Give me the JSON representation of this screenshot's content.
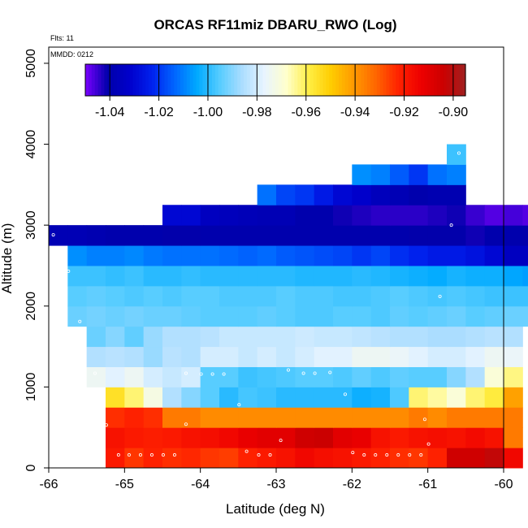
{
  "chart_data": {
    "type": "heatmap",
    "title": "ORCAS RF11miz DBARU_RWO (Log)",
    "notes": {
      "flights": "Flts: 11",
      "date": "MMDD: 0212"
    },
    "xlabel": "Latitude (deg N)",
    "ylabel": "Altitude (m)",
    "xlim": [
      -66,
      -60
    ],
    "ylim": [
      0,
      5200
    ],
    "x_ticks": [
      -66,
      -65,
      -64,
      -63,
      -62,
      -61,
      -60
    ],
    "x_tick_labels": [
      "-66",
      "-65",
      "-64",
      "-63",
      "-62",
      "-61",
      "-60"
    ],
    "y_ticks": [
      0,
      1000,
      2000,
      3000,
      4000,
      5000
    ],
    "y_tick_labels": [
      "0",
      "1000",
      "2000",
      "3000",
      "4000",
      "5000"
    ],
    "colorbar": {
      "range": [
        -1.05,
        -0.895
      ],
      "ticks": [
        -1.04,
        -1.02,
        -1.0,
        -0.98,
        -0.96,
        -0.94,
        -0.92,
        -0.9
      ],
      "tick_labels": [
        "-1.04",
        "-1.02",
        "-1.00",
        "-0.98",
        "-0.96",
        "-0.94",
        "-0.92",
        "-0.90"
      ],
      "colors": [
        "#7b00ff",
        "#0000aa",
        "#0000cc",
        "#0022ee",
        "#0066ff",
        "#00aaff",
        "#55ccff",
        "#aaddff",
        "#e8f4ff",
        "#ffffcc",
        "#ffee44",
        "#ffcc00",
        "#ff9900",
        "#ff6600",
        "#ff2200",
        "#ee0000",
        "#cc0000",
        "#a02020"
      ]
    },
    "grid": {
      "lat_start": -66,
      "lat_step": 0.25,
      "alt_step": 250
    },
    "rows": [
      {
        "alt": 0,
        "start": -65.25,
        "values": [
          -0.92,
          -0.925,
          -0.922,
          -0.924,
          -0.923,
          -0.925,
          -0.926,
          -0.922,
          -0.92,
          -0.918,
          -0.915,
          -0.917,
          -0.918,
          -0.92,
          -0.922,
          -0.924,
          -0.925,
          -0.922,
          -0.905,
          -0.905,
          -0.902,
          -0.915
        ]
      },
      {
        "alt": 250,
        "start": -65.25,
        "values": [
          -0.918,
          -0.92,
          -0.921,
          -0.92,
          -0.918,
          -0.917,
          -0.915,
          -0.912,
          -0.91,
          -0.91,
          -0.905,
          -0.904,
          -0.91,
          -0.912,
          -0.918,
          -0.92,
          -0.918,
          -0.917,
          -0.918,
          -0.916,
          -0.918,
          -0.935
        ]
      },
      {
        "alt": 500,
        "start": -65.25,
        "values": [
          -0.924,
          -0.922,
          -0.924,
          -0.935,
          -0.935,
          -0.938,
          -0.938,
          -0.938,
          -0.938,
          -0.938,
          -0.938,
          -0.938,
          -0.938,
          -0.938,
          -0.938,
          -0.938,
          -0.935,
          -0.938,
          -0.935,
          -0.935,
          -0.935,
          -0.935
        ]
      },
      {
        "alt": 750,
        "start": -65.25,
        "values": [
          -0.955,
          -0.962,
          -0.972,
          -0.985,
          -0.99,
          -0.995,
          -1.0,
          -0.997,
          -0.998,
          -1.0,
          -1.0,
          -1.0,
          -1.0,
          -1.003,
          -1.002,
          -0.996,
          -0.962,
          -0.965,
          -0.97,
          -0.962,
          -0.958,
          -0.942
        ]
      },
      {
        "alt": 1000,
        "start": -65.5,
        "values": [
          -0.975,
          -0.978,
          -0.975,
          -0.98,
          -0.982,
          -0.98,
          -0.995,
          -0.995,
          -0.998,
          -0.997,
          -0.996,
          -0.995,
          -0.995,
          -0.996,
          -0.994,
          -0.996,
          -0.994,
          -0.995,
          -0.995,
          -0.99,
          -0.985,
          -0.97,
          -0.963
        ]
      },
      {
        "alt": 1250,
        "start": -65.5,
        "values": [
          -0.985,
          -0.984,
          -0.985,
          -0.988,
          -0.984,
          -0.985,
          -0.98,
          -0.98,
          -0.982,
          -0.98,
          -0.982,
          -0.98,
          -0.978,
          -0.978,
          -0.975,
          -0.975,
          -0.976,
          -0.978,
          -0.98,
          -0.98,
          -0.978,
          -0.975,
          -0.976
        ]
      },
      {
        "alt": 1500,
        "start": -65.5,
        "values": [
          -0.993,
          -0.99,
          -0.994,
          -0.988,
          -0.985,
          -0.985,
          -0.984,
          -0.982,
          -0.982,
          -0.982,
          -0.982,
          -0.981,
          -0.982,
          -0.982,
          -0.983,
          -0.984,
          -0.985,
          -0.985,
          -0.986,
          -0.986,
          -0.985,
          -0.984,
          -0.985
        ]
      },
      {
        "alt": 1750,
        "start": -65.75,
        "values": [
          -0.993,
          -0.992,
          -0.993,
          -0.992,
          -0.993,
          -0.993,
          -0.994,
          -0.995,
          -0.995,
          -0.995,
          -0.994,
          -0.995,
          -0.996,
          -0.996,
          -0.995,
          -0.995,
          -0.996,
          -0.994,
          -0.995,
          -0.994,
          -0.993,
          -0.995,
          -0.994,
          -0.993,
          -0.993,
          -0.994,
          -0.995,
          -0.993,
          -0.994,
          -0.995
        ]
      },
      {
        "alt": 2000,
        "start": -65.75,
        "values": [
          -0.995,
          -0.994,
          -0.995,
          -0.996,
          -0.995,
          -0.996,
          -0.995,
          -0.995,
          -0.996,
          -0.996,
          -0.996,
          -0.995,
          -0.996,
          -0.996,
          -0.997,
          -0.997,
          -0.996,
          -0.995,
          -0.996,
          -0.997,
          -0.996,
          -0.997,
          -0.998,
          -0.998,
          -0.998,
          -0.998,
          -0.997,
          -0.999,
          -1.0,
          -1.0
        ]
      },
      {
        "alt": 2250,
        "start": -65.75,
        "values": [
          -0.998,
          -0.998,
          -0.999,
          -0.998,
          -1.0,
          -1.0,
          -0.999,
          -1.0,
          -1.0,
          -1.0,
          -1.0,
          -1.0,
          -1.001,
          -1.001,
          -1.001,
          -1.0,
          -1.001,
          -1.002,
          -1.003,
          -1.004,
          -1.002,
          -1.003,
          -1.003,
          -1.005,
          -1.006,
          -1.007,
          -1.006,
          -1.008,
          -1.009,
          -1.01
        ]
      },
      {
        "alt": 2500,
        "start": -65.75,
        "values": [
          -1.008,
          -1.01,
          -1.01,
          -1.009,
          -1.011,
          -1.012,
          -1.012,
          -1.012,
          -1.013,
          -1.014,
          -1.013,
          -1.015,
          -1.016,
          -1.017,
          -1.018,
          -1.02,
          -1.018,
          -1.021,
          -1.023,
          -1.025,
          -1.025,
          -1.027,
          -1.03,
          -1.035,
          -1.035,
          -1.036,
          -1.035,
          -1.036,
          -1.038,
          -1.035
        ]
      },
      {
        "alt": 2750,
        "start": -66.0,
        "values": [
          -1.038,
          -1.038,
          -1.039,
          -1.04,
          -1.04,
          -1.04,
          -1.041,
          -1.041,
          -1.04,
          -1.04,
          -1.04,
          -1.04,
          -1.04,
          -1.04,
          -1.04,
          -1.04,
          -1.04,
          -1.04,
          -1.04,
          -1.041,
          -1.041,
          -1.041,
          -1.042,
          -1.04,
          -1.04,
          -1.041,
          -1.04,
          -1.041,
          -1.042,
          -1.043,
          -1.042,
          -1.043
        ]
      },
      {
        "alt": 3000,
        "start": -64.5,
        "values": [
          -1.03,
          -1.03,
          -1.035,
          -1.036,
          -1.037,
          -1.038,
          -1.038,
          -1.04,
          -1.04,
          -1.042,
          -1.043,
          -1.044,
          -1.044,
          -1.044,
          -1.043,
          -1.042,
          -1.045,
          -1.047,
          -1.046,
          -1.047,
          -1.048,
          -1.05
        ]
      },
      {
        "alt": 3250,
        "start": -63.25,
        "values": [
          -1.012,
          -1.018,
          -1.02,
          -1.025,
          -1.03,
          -1.032,
          -1.036,
          -1.038,
          -1.04,
          -1.039,
          -1.039
        ]
      },
      {
        "alt": 3500,
        "start": -62.0,
        "values": [
          -1.008,
          -1.01,
          -1.015,
          -1.02,
          -1.012,
          -1.01
        ]
      },
      {
        "alt": 3750,
        "start": -60.75,
        "values": [
          -0.998
        ]
      }
    ],
    "points": [
      [
        -65.08,
        160
      ],
      [
        -64.94,
        160
      ],
      [
        -64.79,
        160
      ],
      [
        -64.64,
        160
      ],
      [
        -64.49,
        160
      ],
      [
        -64.34,
        160
      ],
      [
        -63.39,
        205
      ],
      [
        -63.23,
        160
      ],
      [
        -63.08,
        160
      ],
      [
        -61.99,
        190
      ],
      [
        -61.84,
        160
      ],
      [
        -61.69,
        160
      ],
      [
        -61.54,
        160
      ],
      [
        -61.39,
        160
      ],
      [
        -61.24,
        160
      ],
      [
        -61.09,
        160
      ],
      [
        -62.94,
        340
      ],
      [
        -60.99,
        295
      ],
      [
        -65.24,
        530
      ],
      [
        -64.19,
        540
      ],
      [
        -61.04,
        600
      ],
      [
        -63.49,
        780
      ],
      [
        -62.09,
        910
      ],
      [
        -65.39,
        1170
      ],
      [
        -63.99,
        1160
      ],
      [
        -63.84,
        1160
      ],
      [
        -63.69,
        1160
      ],
      [
        -62.84,
        1210
      ],
      [
        -62.64,
        1170
      ],
      [
        -62.49,
        1170
      ],
      [
        -62.29,
        1180
      ],
      [
        -64.19,
        1170
      ],
      [
        -65.59,
        1810
      ],
      [
        -60.84,
        2120
      ],
      [
        -65.74,
        2430
      ],
      [
        -65.94,
        2880
      ],
      [
        -60.69,
        3000
      ],
      [
        -60.59,
        3890
      ]
    ]
  }
}
